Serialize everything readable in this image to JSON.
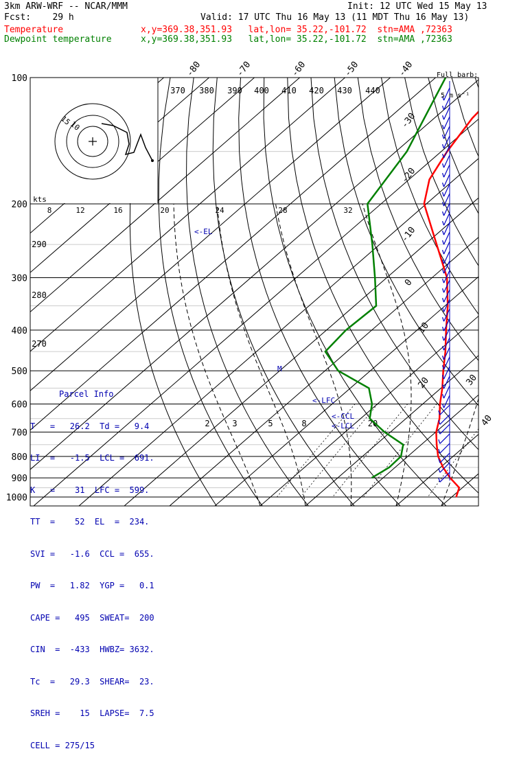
{
  "header": {
    "line1_left": "3km ARW-WRF -- NCAR/MMM",
    "line1_right": "Init: 12 UTC Wed 15 May 13",
    "line2_left": "Fcst:    29 h",
    "line2_right": "Valid: 17 UTC Thu 16 May 13 (11 MDT Thu 16 May 13)",
    "temp_label": "Temperature",
    "temp_info": "x,y=369.38,351.93   lat,lon= 35.22,-101.72  stn=AMA ,72363",
    "dew_label": "Dewpoint temperature",
    "dew_info": "x,y=369.38,351.93   lat,lon= 35.22,-101.72  stn=AMA ,72363"
  },
  "full_barb": {
    "line1": "Full barb:",
    "line2": "5 m s⁻¹"
  },
  "colors": {
    "temperature": "#ff0000",
    "dewpoint": "#008000",
    "parcel": "#0000b0",
    "wind": "#0000c0"
  },
  "chart_data": {
    "type": "line",
    "title": "3km ARW-WRF -- NCAR/MMM",
    "xlabel": "",
    "ylabel": "",
    "pressure_levels": [
      "100",
      "200",
      "300",
      "400",
      "500",
      "600",
      "700",
      "800",
      "900",
      "1000"
    ],
    "isotherm_labels": [
      "-80",
      "-70",
      "-60",
      "-50",
      "-40",
      "-30",
      "-20",
      "-10",
      "0",
      "10",
      "20",
      "30",
      "40"
    ],
    "theta_labels": [
      "370",
      "380",
      "390",
      "400",
      "410",
      "420",
      "430",
      "440",
      "290",
      "280",
      "270"
    ],
    "mixing_ratio_labels": [
      "2",
      "3",
      "5",
      "8",
      "20"
    ],
    "hodo_speed_labels": [
      "kts",
      "8",
      "12",
      "16",
      "20",
      "24",
      "28",
      "32"
    ],
    "hodo_ring_labels": [
      "15",
      "10"
    ],
    "annotations": [
      "<-EL",
      "<-LFC",
      "<-CCL",
      "<-LCL"
    ],
    "series": [
      {
        "name": "Temperature",
        "points": [
          [
            1000,
            31
          ],
          [
            950,
            29.3
          ],
          [
            900,
            24.8
          ],
          [
            850,
            20.6
          ],
          [
            800,
            16.7
          ],
          [
            750,
            13.4
          ],
          [
            700,
            10.1
          ],
          [
            650,
            7.4
          ],
          [
            600,
            3.8
          ],
          [
            550,
            0.3
          ],
          [
            500,
            -3.9
          ],
          [
            450,
            -8.3
          ],
          [
            400,
            -13.6
          ],
          [
            350,
            -19.4
          ],
          [
            300,
            -26.7
          ],
          [
            250,
            -37.4
          ],
          [
            200,
            -50.5
          ],
          [
            175,
            -55.5
          ],
          [
            150,
            -58.7
          ],
          [
            125,
            -61.6
          ],
          [
            100,
            -63.2
          ]
        ]
      },
      {
        "name": "Dewpoint temperature",
        "points": [
          [
            900,
            7.5
          ],
          [
            850,
            8.7
          ],
          [
            800,
            8.5
          ],
          [
            750,
            6.0
          ],
          [
            700,
            -1.3
          ],
          [
            650,
            -8.0
          ],
          [
            600,
            -11.2
          ],
          [
            550,
            -15.9
          ],
          [
            500,
            -27.1
          ],
          [
            450,
            -34.8
          ],
          [
            400,
            -35.7
          ],
          [
            350,
            -35.2
          ],
          [
            300,
            -42.6
          ],
          [
            250,
            -51.6
          ],
          [
            200,
            -63.0
          ],
          [
            150,
            -67.6
          ],
          [
            100,
            -77.8
          ]
        ]
      }
    ]
  },
  "parcel_info": {
    "title": "Parcel Info",
    "rows": [
      "T   =   26.2  Td =   9.4",
      "LI  =   -1.5  LCL =  691.",
      "K   =    31  LFC =  599.",
      "TT  =    52  EL  =  234.",
      "SVI =   -1.6  CCL =  655.",
      "PW  =   1.82  YGP =   0.1",
      "CAPE =   495  SWEAT=  200",
      "CIN  =  -433  HWBZ= 3632.",
      "Tc  =   29.3  SHEAR=  23.",
      "SREH =    15  LAPSE=  7.5",
      "CELL = 275/15"
    ]
  }
}
